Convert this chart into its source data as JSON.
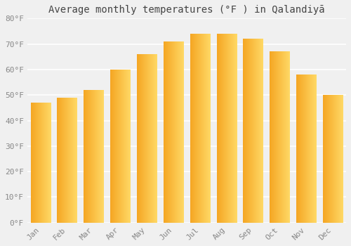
{
  "title": "Average monthly temperatures (°F ) in Qalandiyā",
  "months": [
    "Jan",
    "Feb",
    "Mar",
    "Apr",
    "May",
    "Jun",
    "Jul",
    "Aug",
    "Sep",
    "Oct",
    "Nov",
    "Dec"
  ],
  "values": [
    47,
    49,
    52,
    60,
    66,
    71,
    74,
    74,
    72,
    67,
    58,
    50
  ],
  "bar_color_left": "#F5A623",
  "bar_color_right": "#FFD966",
  "ylim": [
    0,
    80
  ],
  "yticks": [
    0,
    10,
    20,
    30,
    40,
    50,
    60,
    70,
    80
  ],
  "ytick_labels": [
    "0°F",
    "10°F",
    "20°F",
    "30°F",
    "40°F",
    "50°F",
    "60°F",
    "70°F",
    "80°F"
  ],
  "background_color": "#f0f0f0",
  "grid_color": "#ffffff",
  "title_fontsize": 10,
  "tick_fontsize": 8,
  "font_family": "monospace",
  "tick_color": "#888888",
  "title_color": "#444444"
}
